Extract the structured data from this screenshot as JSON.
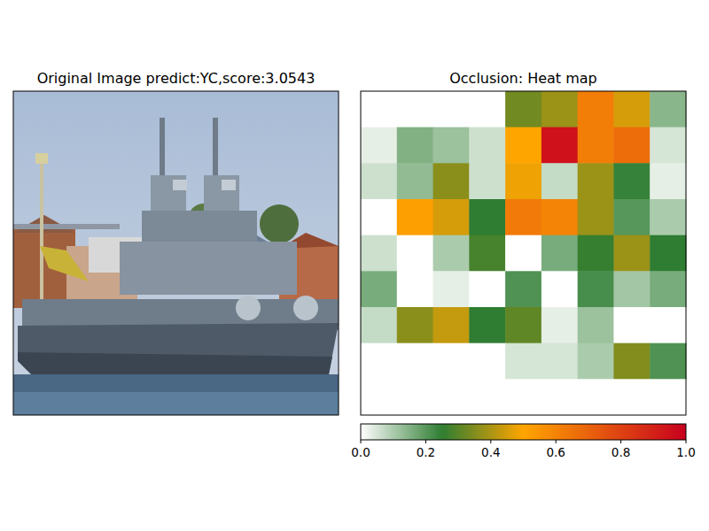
{
  "chart_data": [
    {
      "type": "image",
      "title": "Original Image predict:YC,score:3.0543",
      "tick_labels": false
    },
    {
      "type": "heatmap",
      "title": "Occlusion: Heat map",
      "tick_labels": false,
      "cells": [
        [
          0,
          0,
          0,
          0,
          0.33,
          0.38,
          0.62,
          0.45,
          0.14
        ],
        [
          0.03,
          0.15,
          0.12,
          0.06,
          0.5,
          0.95,
          0.62,
          0.67,
          0.05
        ],
        [
          0.06,
          0.13,
          0.36,
          0.06,
          0.48,
          0.07,
          0.38,
          0.24,
          0.03
        ],
        [
          0,
          0.52,
          0.45,
          0.25,
          0.63,
          0.6,
          0.38,
          0.2,
          0.1
        ],
        [
          0.06,
          0,
          0.1,
          0.28,
          0,
          0.16,
          0.26,
          0.38,
          0.25
        ],
        [
          0.16,
          0,
          0.03,
          0,
          0.21,
          0,
          0.22,
          0.11,
          0.16
        ],
        [
          0.07,
          0.36,
          0.43,
          0.25,
          0.31,
          0.03,
          0.12,
          0,
          0
        ],
        [
          0,
          0,
          0,
          0,
          0.05,
          0.05,
          0.1,
          0.35,
          0.21
        ],
        [
          0,
          0,
          0,
          0,
          0,
          0,
          0,
          0,
          0
        ]
      ],
      "colorbar_range": [
        0,
        1
      ],
      "colorbar_ticks": [
        {
          "value": 0,
          "label": "0.0"
        },
        {
          "value": 0.2,
          "label": "0.2"
        },
        {
          "value": 0.4,
          "label": "0.4"
        },
        {
          "value": 0.6,
          "label": "0.6"
        },
        {
          "value": 0.8,
          "label": "0.8"
        },
        {
          "value": 1,
          "label": "1.0"
        }
      ]
    }
  ]
}
